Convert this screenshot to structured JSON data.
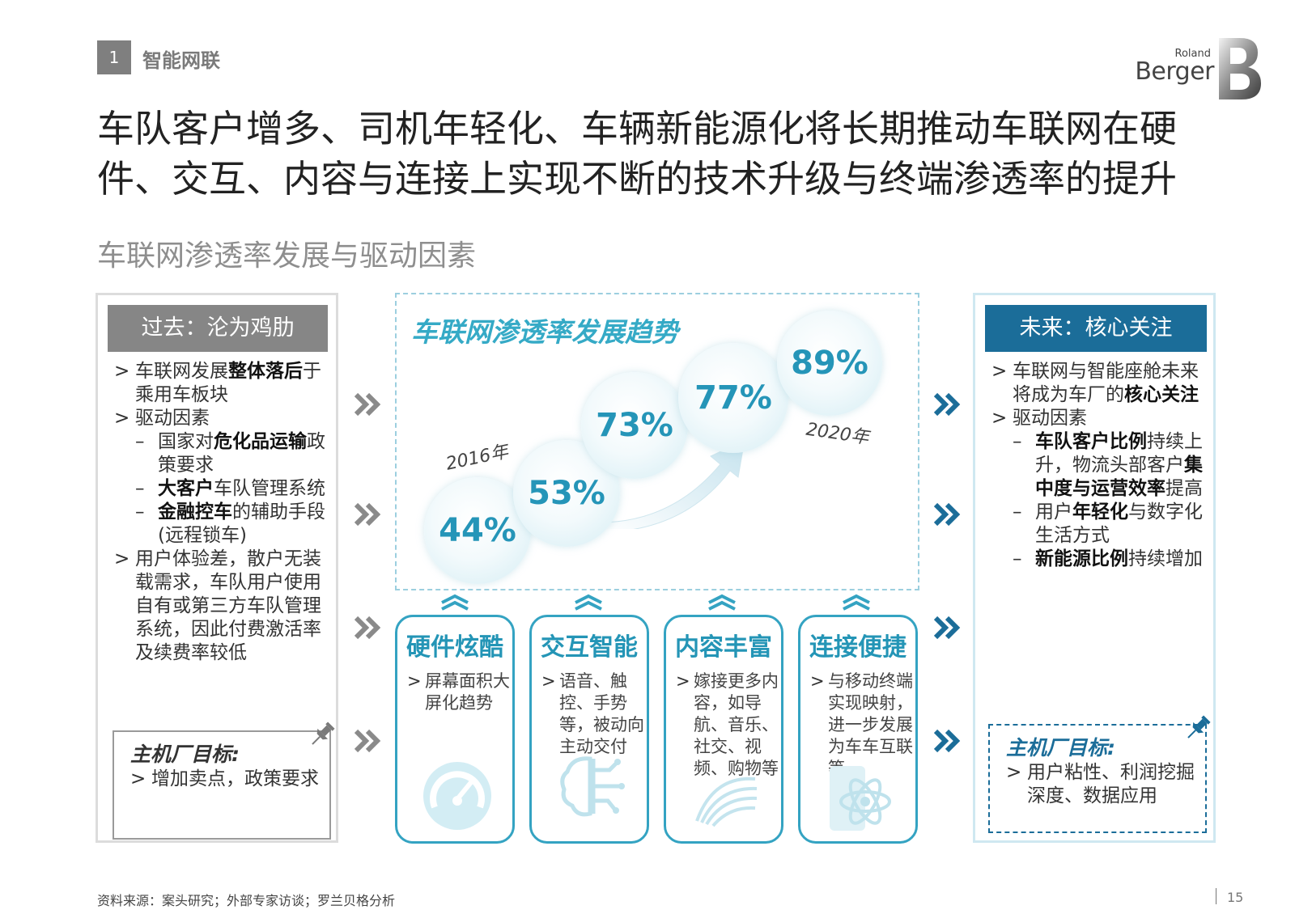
{
  "section": {
    "number": "1",
    "title": "智能网联"
  },
  "logo": {
    "line1": "Roland",
    "line2": "Berger"
  },
  "headline": "车队客户增多、司机年轻化、车辆新能源化将长期推动车联网在硬件、交互、内容与连接上实现不断的技术升级与终端渗透率的提升",
  "subtitle": "车联网渗透率发展与驱动因素",
  "past": {
    "header": "过去：沦为鸡肋",
    "b1_pre": "车联网发展",
    "b1_bold": "整体落后",
    "b1_post": "于乘用车板块",
    "b2": "驱动因素",
    "s1_pre": "国家对",
    "s1_bold": "危化品运输",
    "s1_post": "政策要求",
    "s2_bold": "大客户",
    "s2_post": "车队管理系统",
    "s3_bold": "金融控车",
    "s3_post": "的辅助手段 (远程锁车)",
    "b3": "用户体验差，散户无装载需求，车队用户使用自有或第三方车队管理系统，因此付费激活率及续费率较低",
    "goal_title": "主机厂目标:",
    "goal_body": "增加卖点，政策要求"
  },
  "trend": {
    "title": "车联网渗透率发展趋势",
    "start_year": "2016年",
    "end_year": "2020年",
    "values": [
      "44%",
      "53%",
      "73%",
      "77%",
      "89%"
    ]
  },
  "cards": [
    {
      "title": "硬件炫酷",
      "body": "屏幕面积大屏化趋势",
      "icon": "speedometer-icon"
    },
    {
      "title": "交互智能",
      "body": "语音、触控、手势等，被动向主动交付",
      "icon": "brain-circuit-icon"
    },
    {
      "title": "内容丰富",
      "body": "嫁接更多内容，如导航、音乐、社交、视频、购物等",
      "icon": "content-swirl-icon"
    },
    {
      "title": "连接便捷",
      "body": "与移动终端实现映射，进一步发展为车车互联等",
      "icon": "atom-phone-icon"
    }
  ],
  "future": {
    "header": "未来：核心关注",
    "b1_pre": "车联网与智能座舱未来将成为车厂的",
    "b1_bold": "核心关注",
    "b2": "驱动因素",
    "s1_bold": "车队客户比例",
    "s1_mid": "持续上升，物流头部客户",
    "s1_bold2": "集中度与运营效率",
    "s1_post": "提高",
    "s2_pre": "用户",
    "s2_bold": "年轻化",
    "s2_post": "与数字化生活方式",
    "s3_bold": "新能源比例",
    "s3_post": "持续增加",
    "goal_title": "主机厂目标:",
    "goal_body": "用户粘性、利润挖掘深度、数据应用"
  },
  "footer": {
    "source": "资料来源：案头研究；外部专家访谈；罗兰贝格分析",
    "page": "15"
  },
  "colors": {
    "accent_blue": "#1b6d99",
    "cyan": "#34a3c2",
    "grey_header": "#868686"
  }
}
